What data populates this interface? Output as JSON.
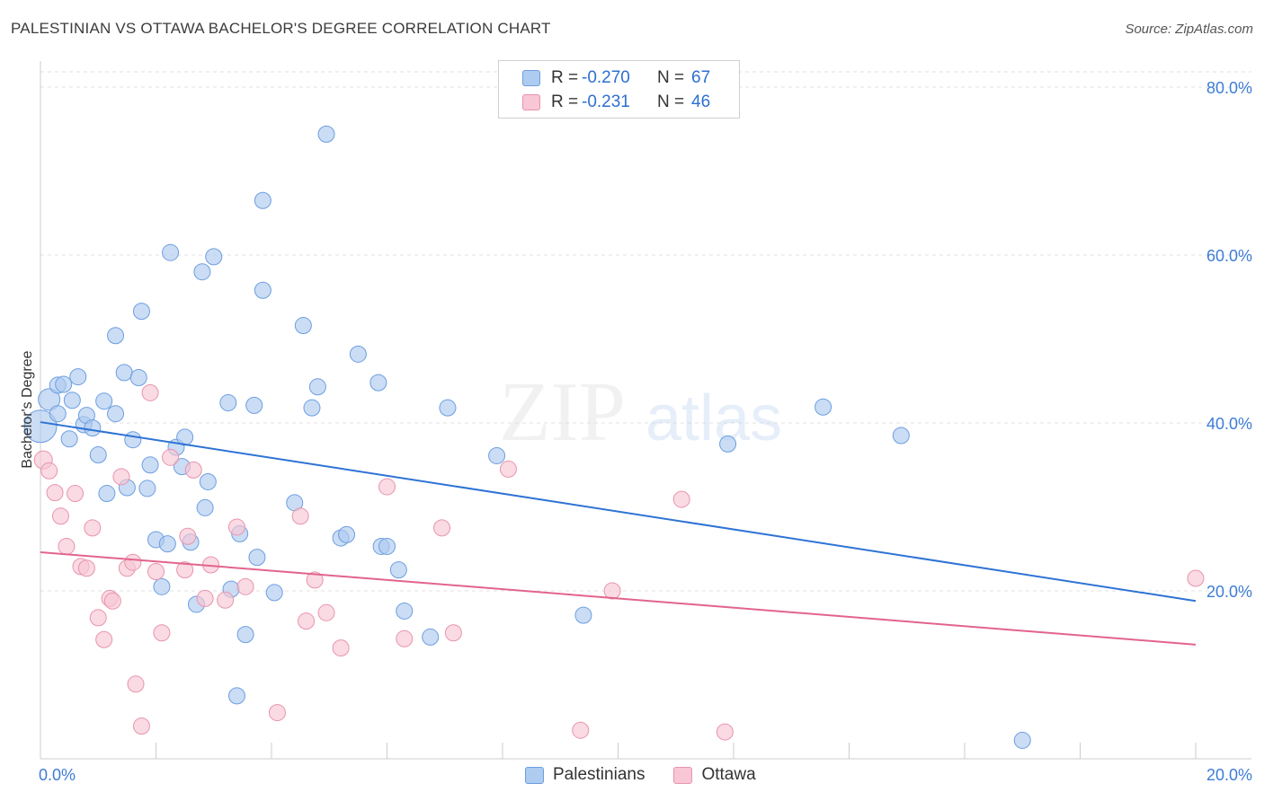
{
  "header": {
    "title": "PALESTINIAN VS OTTAWA BACHELOR'S DEGREE CORRELATION CHART",
    "source": "Source: ZipAtlas.com"
  },
  "watermark": {
    "zip": "ZIP",
    "atlas": "atlas"
  },
  "legend": {
    "rows": [
      {
        "r_label": "R =",
        "r_value": "-0.270",
        "n_label": "N =",
        "n_value": "67",
        "color": "#aecbf0",
        "border": "#6d9ee0"
      },
      {
        "r_label": "R =",
        "r_value": "-0.231",
        "n_label": "N =",
        "n_value": "46",
        "color": "#f8c6d4",
        "border": "#e894ad"
      }
    ]
  },
  "bottom_legend": {
    "items": [
      "Palestinians",
      "Ottawa"
    ]
  },
  "chart_data": {
    "type": "scatter",
    "title": "PALESTINIAN VS OTTAWA BACHELOR'S DEGREE CORRELATION CHART",
    "xlabel": "",
    "ylabel": "Bachelor's Degree",
    "xlim": [
      0,
      20
    ],
    "ylim": [
      0,
      80
    ],
    "x_tick_labels": [
      "0.0%",
      "20.0%"
    ],
    "y_tick_labels": [
      "20.0%",
      "40.0%",
      "60.0%",
      "80.0%"
    ],
    "y_ticks": [
      20,
      40,
      60,
      80
    ],
    "grid": true,
    "series": [
      {
        "name": "Palestinians",
        "color": "#aecbf0",
        "stroke": "#6d9ee0",
        "trend": {
          "x": [
            0,
            20
          ],
          "y": [
            40.1,
            18.8
          ],
          "color": "#2e73d4"
        },
        "points": [
          [
            0.0,
            39.6,
            18
          ],
          [
            0.15,
            42.8,
            12
          ],
          [
            0.3,
            41.1,
            9
          ],
          [
            0.3,
            44.5,
            9
          ],
          [
            0.4,
            44.6,
            9
          ],
          [
            0.5,
            38.1,
            9
          ],
          [
            0.55,
            42.7,
            9
          ],
          [
            0.65,
            45.5,
            9
          ],
          [
            0.75,
            39.8,
            9
          ],
          [
            0.8,
            40.9,
            9
          ],
          [
            0.9,
            39.4,
            9
          ],
          [
            1.0,
            36.2,
            9
          ],
          [
            1.1,
            42.6,
            9
          ],
          [
            1.15,
            31.6,
            9
          ],
          [
            1.3,
            41.1,
            9
          ],
          [
            1.3,
            50.4,
            9
          ],
          [
            1.45,
            46.0,
            9
          ],
          [
            1.5,
            32.3,
            9
          ],
          [
            1.6,
            38.0,
            9
          ],
          [
            1.7,
            45.4,
            9
          ],
          [
            1.75,
            53.3,
            9
          ],
          [
            1.85,
            32.2,
            9
          ],
          [
            1.9,
            35.0,
            9
          ],
          [
            2.0,
            26.1,
            9
          ],
          [
            2.1,
            20.5,
            9
          ],
          [
            2.2,
            25.6,
            9
          ],
          [
            2.25,
            60.3,
            9
          ],
          [
            2.35,
            37.1,
            9
          ],
          [
            2.45,
            34.8,
            9
          ],
          [
            2.5,
            38.3,
            9
          ],
          [
            2.6,
            25.8,
            9
          ],
          [
            2.7,
            18.4,
            9
          ],
          [
            2.8,
            58.0,
            9
          ],
          [
            2.85,
            29.9,
            9
          ],
          [
            2.9,
            33.0,
            9
          ],
          [
            3.0,
            59.8,
            9
          ],
          [
            3.25,
            42.4,
            9
          ],
          [
            3.3,
            20.2,
            9
          ],
          [
            3.4,
            7.5,
            9
          ],
          [
            3.45,
            26.8,
            9
          ],
          [
            3.55,
            14.8,
            9
          ],
          [
            3.7,
            42.1,
            9
          ],
          [
            3.75,
            24.0,
            9
          ],
          [
            3.85,
            55.8,
            9
          ],
          [
            3.85,
            66.5,
            9
          ],
          [
            4.05,
            19.8,
            9
          ],
          [
            4.4,
            30.5,
            9
          ],
          [
            4.55,
            51.6,
            9
          ],
          [
            4.7,
            41.8,
            9
          ],
          [
            4.8,
            44.3,
            9
          ],
          [
            4.95,
            74.4,
            9
          ],
          [
            5.2,
            26.3,
            9
          ],
          [
            5.3,
            26.7,
            9
          ],
          [
            5.5,
            48.2,
            9
          ],
          [
            5.85,
            44.8,
            9
          ],
          [
            5.9,
            25.3,
            9
          ],
          [
            6.0,
            25.3,
            9
          ],
          [
            6.2,
            22.5,
            9
          ],
          [
            6.3,
            17.6,
            9
          ],
          [
            6.75,
            14.5,
            9
          ],
          [
            7.05,
            41.8,
            9
          ],
          [
            7.9,
            36.1,
            9
          ],
          [
            9.4,
            17.1,
            9
          ],
          [
            11.9,
            37.5,
            9
          ],
          [
            13.55,
            41.9,
            9
          ],
          [
            14.9,
            38.5,
            9
          ],
          [
            17.0,
            2.2,
            9
          ]
        ]
      },
      {
        "name": "Ottawa",
        "color": "#f8c6d4",
        "stroke": "#e894ad",
        "trend": {
          "x": [
            0,
            20
          ],
          "y": [
            24.6,
            13.6
          ],
          "color": "#e2648c"
        },
        "points": [
          [
            0.05,
            35.6,
            10
          ],
          [
            0.15,
            34.3,
            9
          ],
          [
            0.25,
            31.7,
            9
          ],
          [
            0.35,
            28.9,
            9
          ],
          [
            0.45,
            25.3,
            9
          ],
          [
            0.6,
            31.6,
            9
          ],
          [
            0.7,
            22.9,
            9
          ],
          [
            0.8,
            22.7,
            9
          ],
          [
            0.9,
            27.5,
            9
          ],
          [
            1.0,
            16.8,
            9
          ],
          [
            1.1,
            14.2,
            9
          ],
          [
            1.2,
            19.1,
            9
          ],
          [
            1.25,
            18.8,
            9
          ],
          [
            1.4,
            33.6,
            9
          ],
          [
            1.5,
            22.7,
            9
          ],
          [
            1.6,
            23.4,
            9
          ],
          [
            1.65,
            8.9,
            9
          ],
          [
            1.75,
            3.9,
            9
          ],
          [
            1.9,
            43.6,
            9
          ],
          [
            2.0,
            22.3,
            9
          ],
          [
            2.1,
            15.0,
            9
          ],
          [
            2.25,
            35.9,
            9
          ],
          [
            2.5,
            22.5,
            9
          ],
          [
            2.55,
            26.5,
            9
          ],
          [
            2.65,
            34.4,
            9
          ],
          [
            2.85,
            19.1,
            9
          ],
          [
            2.95,
            23.1,
            9
          ],
          [
            3.2,
            18.9,
            9
          ],
          [
            3.4,
            27.6,
            9
          ],
          [
            3.55,
            20.5,
            9
          ],
          [
            4.1,
            5.5,
            9
          ],
          [
            4.5,
            28.9,
            9
          ],
          [
            4.6,
            16.4,
            9
          ],
          [
            4.75,
            21.3,
            9
          ],
          [
            4.95,
            17.4,
            9
          ],
          [
            5.2,
            13.2,
            9
          ],
          [
            6.0,
            32.4,
            9
          ],
          [
            6.3,
            14.3,
            9
          ],
          [
            6.95,
            27.5,
            9
          ],
          [
            7.15,
            15.0,
            9
          ],
          [
            8.1,
            34.5,
            9
          ],
          [
            9.35,
            3.4,
            9
          ],
          [
            9.9,
            20.0,
            9
          ],
          [
            11.1,
            30.9,
            9
          ],
          [
            11.85,
            3.2,
            9
          ],
          [
            20.0,
            21.5,
            9
          ]
        ]
      }
    ]
  }
}
